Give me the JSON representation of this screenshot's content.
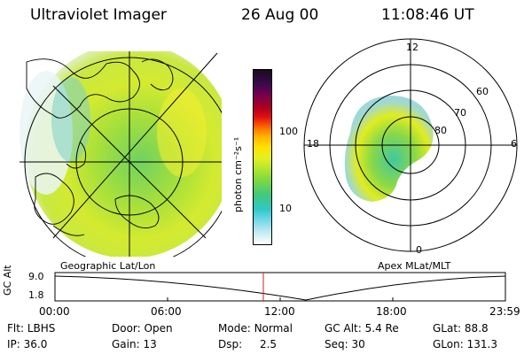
{
  "header": {
    "instrument": "Ultraviolet Imager",
    "date": "26 Aug 00",
    "time": "11:08:46 UT"
  },
  "left_panel": {
    "label": "Geographic Lat/Lon"
  },
  "right_panel": {
    "label": "Apex MLat/MLT",
    "mlt_labels": {
      "top": "12",
      "left": "18",
      "right": "6",
      "bottom": "0"
    },
    "lat_labels": [
      "60",
      "70",
      "80"
    ]
  },
  "colorbar": {
    "unit_label": "photon cm⁻²s⁻¹",
    "ticks": [
      "100",
      "10"
    ]
  },
  "timeline": {
    "axis_label": "GC Alt",
    "y_ticks": [
      "9.0",
      "1.8"
    ],
    "x_ticks": [
      "00:00",
      "06:00",
      "12:00",
      "18:00",
      "23:59"
    ],
    "marker_color": "#cc2222"
  },
  "status": {
    "flt_label": "Flt:",
    "flt_value": "LBHS",
    "door_label": "Door:",
    "door_value": "Open",
    "mode_label": "Mode:",
    "mode_value": "Normal",
    "gcalt_label": "GC Alt:",
    "gcalt_value": "5.4 Re",
    "glat_label": "GLat:",
    "glat_value": "88.8",
    "ip_label": "IP:",
    "ip_value": "36.0",
    "gain_label": "Gain:",
    "gain_value": "13",
    "dsp_label": "Dsp:",
    "dsp_value": "2.5",
    "seq_label": "Seq:",
    "seq_value": "30",
    "glon_label": "GLon:",
    "glon_value": "131.3"
  }
}
